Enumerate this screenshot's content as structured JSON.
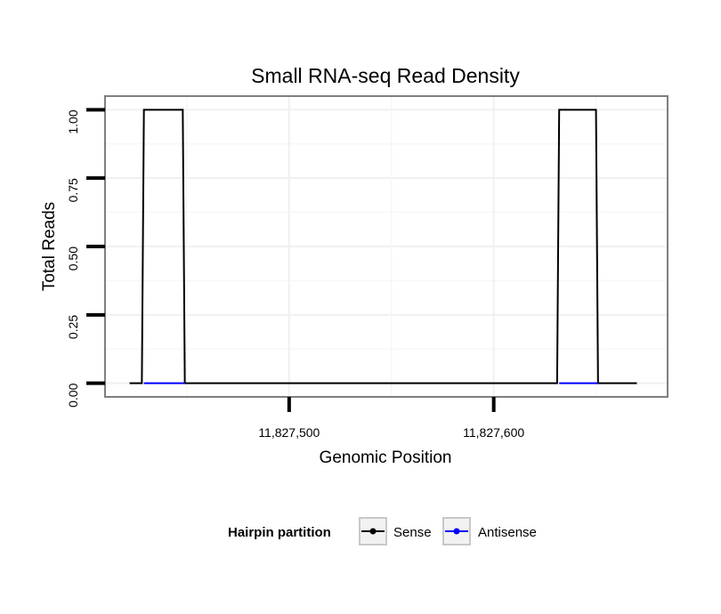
{
  "chart_data": {
    "type": "line",
    "title": "Small RNA-seq Read Density",
    "xlabel": "Genomic Position",
    "ylabel": "Total Reads",
    "xlim": [
      11827410,
      11827685
    ],
    "ylim": [
      -0.05,
      1.05
    ],
    "x_ticks": [
      {
        "value": 11827500,
        "label": "11,827,500"
      },
      {
        "value": 11827600,
        "label": "11,827,600"
      }
    ],
    "x_minor_grid": [
      11827450,
      11827550,
      11827650
    ],
    "y_ticks": [
      {
        "value": 0.0,
        "label": "0.00"
      },
      {
        "value": 0.25,
        "label": "0.25"
      },
      {
        "value": 0.5,
        "label": "0.50"
      },
      {
        "value": 0.75,
        "label": "0.75"
      },
      {
        "value": 1.0,
        "label": "1.00"
      }
    ],
    "y_minor_grid": [
      0.125,
      0.375,
      0.625,
      0.875
    ],
    "series": [
      {
        "name": "Sense",
        "color": "#000000",
        "x": [
          11827422,
          11827428,
          11827429,
          11827448,
          11827449,
          11827631,
          11827632,
          11827650,
          11827651,
          11827670
        ],
        "y": [
          0,
          0,
          1,
          1,
          0,
          0,
          1,
          1,
          0,
          0
        ]
      },
      {
        "name": "Antisense",
        "color": "#0000ff",
        "x": [
          11827429,
          11827449,
          11827632,
          11827651
        ],
        "y": [
          0,
          0,
          0,
          0
        ],
        "segments": [
          [
            0,
            1
          ],
          [
            2,
            3
          ]
        ]
      }
    ],
    "legend": {
      "title": "Hairpin partition",
      "position": "bottom",
      "items": [
        {
          "label": "Sense",
          "color": "#000000"
        },
        {
          "label": "Antisense",
          "color": "#0000ff"
        }
      ]
    },
    "grid": true
  }
}
